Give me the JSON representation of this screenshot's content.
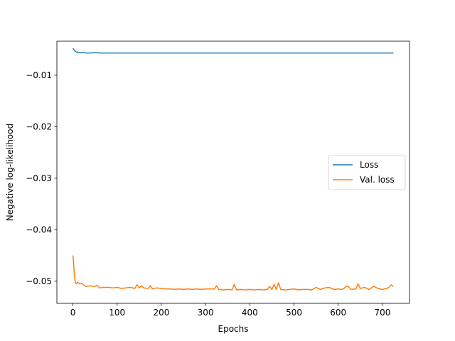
{
  "chart_data": {
    "type": "line",
    "title": "",
    "xlabel": "Epochs",
    "ylabel": "Negative log-likelihood",
    "xlim": [
      -36.25,
      761.25
    ],
    "ylim": [
      -0.0543,
      -0.0034
    ],
    "xticks": [
      0,
      100,
      200,
      300,
      400,
      500,
      600,
      700
    ],
    "yticks": [
      -0.05,
      -0.04,
      -0.03,
      -0.02,
      -0.01
    ],
    "ytick_labels": [
      "−0.05",
      "−0.04",
      "−0.03",
      "−0.02",
      "−0.01"
    ],
    "grid": false,
    "legend": {
      "placement": "center-right"
    },
    "series": [
      {
        "name": "Loss",
        "color": "#1f77b4",
        "x": [
          0,
          2,
          4,
          6,
          8,
          10,
          12,
          15,
          20,
          25,
          30,
          40,
          50,
          60,
          70,
          80,
          90,
          100,
          120,
          140,
          160,
          180,
          200,
          220,
          240,
          260,
          280,
          300,
          320,
          340,
          360,
          380,
          400,
          420,
          440,
          460,
          480,
          500,
          520,
          540,
          560,
          580,
          600,
          620,
          640,
          660,
          680,
          700,
          710,
          720,
          725
        ],
        "y": [
          -0.0048,
          -0.005,
          -0.0052,
          -0.0054,
          -0.0055,
          -0.0055,
          -0.0056,
          -0.0056,
          -0.0056,
          -0.0056,
          -0.0057,
          -0.0057,
          -0.0056,
          -0.0057,
          -0.0057,
          -0.0057,
          -0.0057,
          -0.0057,
          -0.0057,
          -0.0057,
          -0.0057,
          -0.0057,
          -0.0057,
          -0.0057,
          -0.0057,
          -0.0057,
          -0.0057,
          -0.0057,
          -0.0057,
          -0.0057,
          -0.0057,
          -0.0057,
          -0.0057,
          -0.0057,
          -0.0057,
          -0.0057,
          -0.0057,
          -0.0057,
          -0.0057,
          -0.0057,
          -0.0057,
          -0.0057,
          -0.0057,
          -0.0057,
          -0.0057,
          -0.0057,
          -0.0057,
          -0.0057,
          -0.0057,
          -0.0057,
          -0.0057
        ]
      },
      {
        "name": "Val. loss",
        "color": "#ff7f0e",
        "x": [
          0,
          1,
          2,
          3,
          4,
          5,
          6,
          8,
          10,
          12,
          15,
          20,
          25,
          30,
          40,
          50,
          55,
          60,
          70,
          80,
          90,
          100,
          110,
          120,
          130,
          140,
          145,
          150,
          155,
          160,
          170,
          175,
          180,
          190,
          200,
          210,
          220,
          230,
          240,
          250,
          260,
          270,
          280,
          290,
          300,
          310,
          320,
          325,
          330,
          340,
          350,
          360,
          365,
          370,
          380,
          390,
          400,
          410,
          420,
          430,
          440,
          445,
          450,
          455,
          460,
          465,
          470,
          480,
          490,
          500,
          510,
          520,
          530,
          540,
          550,
          560,
          570,
          580,
          590,
          600,
          610,
          620,
          630,
          640,
          645,
          650,
          660,
          670,
          680,
          690,
          700,
          710,
          715,
          720,
          725
        ],
        "y": [
          -0.045,
          -0.0458,
          -0.047,
          -0.0485,
          -0.0495,
          -0.05,
          -0.0503,
          -0.0505,
          -0.0502,
          -0.0503,
          -0.0505,
          -0.0504,
          -0.0508,
          -0.051,
          -0.0509,
          -0.051,
          -0.0508,
          -0.0513,
          -0.0512,
          -0.0512,
          -0.0513,
          -0.0512,
          -0.0514,
          -0.0513,
          -0.0512,
          -0.0514,
          -0.0507,
          -0.0513,
          -0.0509,
          -0.0513,
          -0.0514,
          -0.0509,
          -0.0515,
          -0.0513,
          -0.0514,
          -0.0515,
          -0.0515,
          -0.0516,
          -0.0515,
          -0.0516,
          -0.0515,
          -0.0516,
          -0.0515,
          -0.0516,
          -0.0515,
          -0.0515,
          -0.0515,
          -0.0509,
          -0.0516,
          -0.0517,
          -0.0516,
          -0.0517,
          -0.0506,
          -0.0517,
          -0.0516,
          -0.0517,
          -0.0516,
          -0.0517,
          -0.0516,
          -0.0517,
          -0.0516,
          -0.051,
          -0.0516,
          -0.0506,
          -0.0516,
          -0.0503,
          -0.0516,
          -0.0517,
          -0.0516,
          -0.0515,
          -0.0517,
          -0.0516,
          -0.0516,
          -0.0517,
          -0.0512,
          -0.0516,
          -0.0513,
          -0.0512,
          -0.0516,
          -0.0515,
          -0.0516,
          -0.0509,
          -0.0516,
          -0.0515,
          -0.0505,
          -0.0514,
          -0.0512,
          -0.0516,
          -0.051,
          -0.0514,
          -0.0516,
          -0.0514,
          -0.0512,
          -0.0507,
          -0.051
        ]
      }
    ]
  }
}
